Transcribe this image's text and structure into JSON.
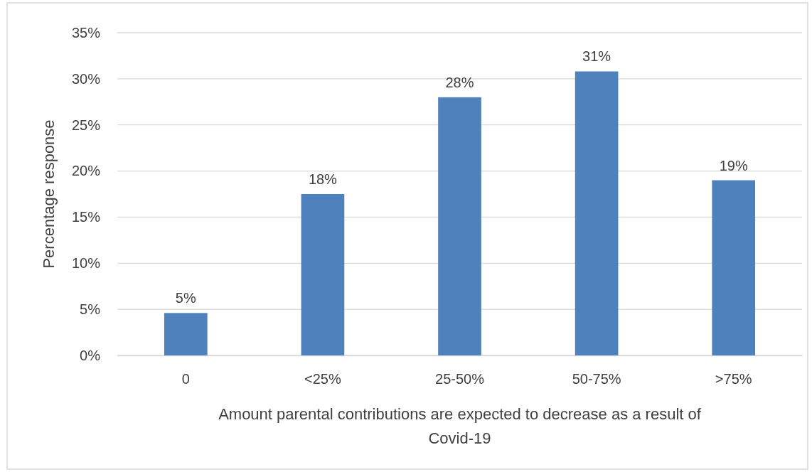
{
  "chart_data": {
    "type": "bar",
    "xlabel": "Amount parental contributions are expected to decrease as a result of Covid-19",
    "ylabel": "Percentage response",
    "categories": [
      "0",
      "<25%",
      "25-50%",
      "50-75%",
      ">75%"
    ],
    "values": [
      4.6,
      17.5,
      28,
      30.8,
      19
    ],
    "value_labels": [
      "5%",
      "18%",
      "28%",
      "31%",
      "19%"
    ],
    "color": "#4f81bd",
    "ylim": [
      0,
      35
    ],
    "yticks": [
      {
        "value": 0,
        "label": "0%"
      },
      {
        "value": 5,
        "label": "5%"
      },
      {
        "value": 10,
        "label": "10%"
      },
      {
        "value": 15,
        "label": "15%"
      },
      {
        "value": 20,
        "label": "20%"
      },
      {
        "value": 25,
        "label": "25%"
      },
      {
        "value": 30,
        "label": "30%"
      },
      {
        "value": 35,
        "label": "35%"
      }
    ],
    "grid": "y"
  }
}
